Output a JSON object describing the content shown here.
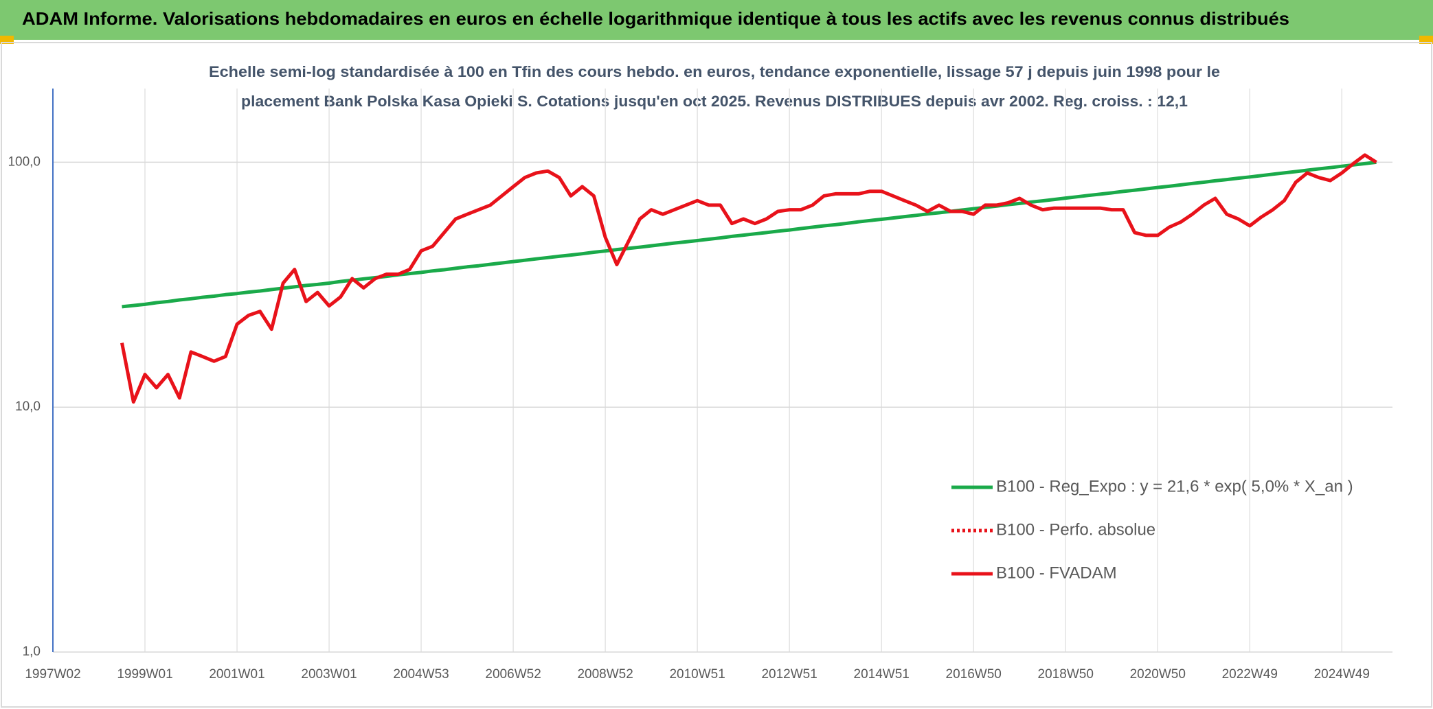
{
  "header": "ADAM Informe. Valorisations hebdomadaires en euros en échelle logarithmique identique à tous les actifs avec les revenus connus distribués",
  "chart_data": {
    "type": "line",
    "subtitle": [
      "Echelle semi-log standardisée à 100 en Tfin des cours hebdo. en euros, tendance exponentielle, lissage 57 j depuis juin 1998 pour le",
      "placement Bank Polska Kasa Opieki S. Cotations jusqu'en oct 2025. Revenus DISTRIBUES depuis avr 2002. Reg. croiss. : 12,1"
    ],
    "log_scale": true,
    "grid": true,
    "ylim": [
      1,
      200
    ],
    "yticks": [
      {
        "value": 1,
        "label": "1,0"
      },
      {
        "value": 10,
        "label": "10,0"
      },
      {
        "value": 100,
        "label": "100,0"
      }
    ],
    "categories": [
      "1997W02",
      null,
      null,
      null,
      null,
      null,
      null,
      null,
      "1999W01",
      null,
      null,
      null,
      null,
      null,
      null,
      null,
      "2001W01",
      null,
      null,
      null,
      null,
      null,
      null,
      null,
      "2003W01",
      null,
      null,
      null,
      null,
      null,
      null,
      null,
      "2004W53",
      null,
      null,
      null,
      null,
      null,
      null,
      null,
      "2006W52",
      null,
      null,
      null,
      null,
      null,
      null,
      null,
      "2008W52",
      null,
      null,
      null,
      null,
      null,
      null,
      null,
      "2010W51",
      null,
      null,
      null,
      null,
      null,
      null,
      null,
      "2012W51",
      null,
      null,
      null,
      null,
      null,
      null,
      null,
      "2014W51",
      null,
      null,
      null,
      null,
      null,
      null,
      null,
      "2016W50",
      null,
      null,
      null,
      null,
      null,
      null,
      null,
      "2018W50",
      null,
      null,
      null,
      null,
      null,
      null,
      null,
      "2020W50",
      null,
      null,
      null,
      null,
      null,
      null,
      null,
      "2022W49",
      null,
      null,
      null,
      null,
      null,
      null,
      null,
      "2024W49",
      null,
      null,
      null
    ],
    "series": [
      {
        "name": "B100 - Reg_Expo : y = 21,6 * exp( 5,0% *  X_an )",
        "color": "#1aaa4a",
        "style": "solid",
        "values": [
          null,
          null,
          null,
          null,
          null,
          null,
          25.7,
          26.0,
          26.3,
          26.7,
          27.0,
          27.4,
          27.7,
          28.1,
          28.4,
          28.8,
          29.1,
          29.5,
          29.8,
          30.2,
          30.6,
          31.0,
          31.4,
          31.7,
          32.1,
          32.6,
          33.0,
          33.4,
          33.8,
          34.2,
          34.7,
          35.1,
          35.5,
          36.0,
          36.4,
          36.9,
          37.4,
          37.8,
          38.3,
          38.8,
          39.3,
          39.8,
          40.3,
          40.8,
          41.3,
          41.8,
          42.3,
          42.9,
          43.4,
          44.0,
          44.5,
          45.0,
          45.6,
          46.2,
          46.8,
          47.3,
          47.9,
          48.5,
          49.1,
          49.8,
          50.4,
          51.0,
          51.6,
          52.3,
          52.9,
          53.6,
          54.3,
          55.0,
          55.6,
          56.3,
          57.1,
          57.8,
          58.5,
          59.2,
          60.0,
          60.7,
          61.5,
          62.2,
          63.0,
          63.8,
          64.6,
          65.4,
          66.2,
          67.1,
          67.9,
          68.8,
          69.6,
          70.5,
          71.4,
          72.3,
          73.2,
          74.1,
          75.0,
          76.0,
          76.9,
          77.9,
          78.9,
          79.8,
          80.8,
          81.9,
          82.9,
          84.0,
          85.0,
          86.1,
          87.1,
          88.2,
          89.4,
          90.5,
          91.6,
          92.8,
          94.0,
          95.1,
          96.3,
          97.5,
          98.7,
          100.0
        ]
      },
      {
        "name": "B100 - Perfo. absolue",
        "color": "#e8121a",
        "style": "dotted",
        "values": [
          null,
          null,
          null,
          null,
          null,
          null,
          null,
          null,
          null,
          null,
          null,
          null,
          null,
          null,
          null,
          null,
          null,
          null,
          null,
          null,
          null,
          null,
          null,
          null,
          null,
          null,
          null,
          null,
          null,
          null,
          null,
          null,
          null,
          null,
          null,
          null,
          null,
          null,
          null,
          null,
          null,
          null,
          null,
          null,
          null,
          null,
          null,
          null,
          null,
          null,
          null,
          null,
          null,
          null,
          null,
          null,
          null,
          null,
          null,
          null,
          null,
          null,
          null,
          null,
          null,
          null,
          null,
          null,
          null,
          null,
          null,
          null,
          null,
          null,
          null,
          null,
          null,
          null,
          null,
          null,
          null,
          null,
          null,
          null,
          null,
          null,
          null,
          null,
          null,
          null,
          null,
          null,
          null,
          null,
          null,
          null,
          null,
          null,
          null,
          null,
          null,
          null,
          null,
          null,
          null,
          null,
          null,
          null,
          null,
          null,
          null,
          null,
          null,
          null,
          null,
          null
        ]
      },
      {
        "name": "B100 - FVADAM",
        "color": "#e8121a",
        "style": "solid",
        "values": [
          null,
          null,
          null,
          null,
          null,
          null,
          18.3,
          10.5,
          13.6,
          12.0,
          13.6,
          10.9,
          16.8,
          16.1,
          15.4,
          16.1,
          21.8,
          23.7,
          24.6,
          20.8,
          32.1,
          36.5,
          27.0,
          29.4,
          25.9,
          28.2,
          33.5,
          30.7,
          33.5,
          34.9,
          34.9,
          36.5,
          43.5,
          45.4,
          51.6,
          58.7,
          61.3,
          64.0,
          66.8,
          72.9,
          79.5,
          86.6,
          90.4,
          92.1,
          86.6,
          72.9,
          79.5,
          72.9,
          49.4,
          38.2,
          47.3,
          58.7,
          64.0,
          61.3,
          64.0,
          66.8,
          69.7,
          66.8,
          66.8,
          56.2,
          58.7,
          56.2,
          58.7,
          63.0,
          64.0,
          64.0,
          66.8,
          72.9,
          74.3,
          74.3,
          74.3,
          76.1,
          76.1,
          72.9,
          69.7,
          66.8,
          63.0,
          66.8,
          63.0,
          63.0,
          61.3,
          66.8,
          66.8,
          68.3,
          71.2,
          66.8,
          64.0,
          65.0,
          65.0,
          65.0,
          65.0,
          65.0,
          64.0,
          64.0,
          51.6,
          50.3,
          50.3,
          54.3,
          57.0,
          61.3,
          66.8,
          71.2,
          61.3,
          58.7,
          55.0,
          59.7,
          64.0,
          69.7,
          82.9,
          90.4,
          86.6,
          84.2,
          90.4,
          98.7,
          107,
          100
        ]
      }
    ]
  }
}
